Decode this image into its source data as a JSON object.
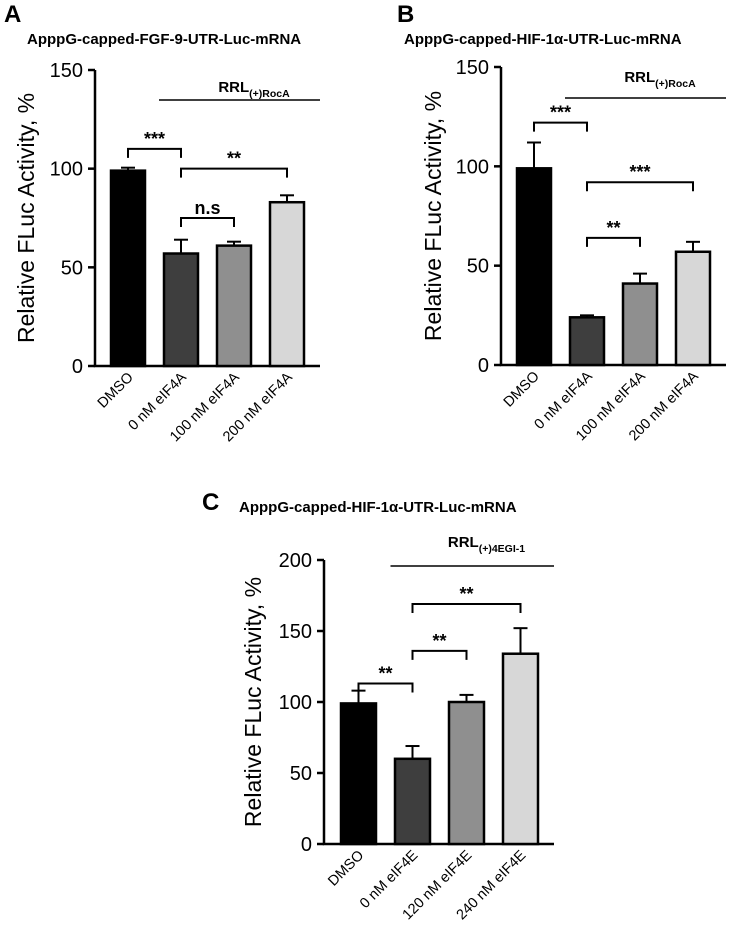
{
  "chart_data": [
    {
      "type": "bar",
      "panel_label": "A",
      "title": "ApppG-capped-FGF-9-UTR-Luc-mRNA",
      "xlabel": "",
      "ylabel": "Relative FLuc Activity, %",
      "ylim": [
        0,
        150
      ],
      "yticks": [
        0,
        50,
        100,
        150
      ],
      "categories": [
        "DMSO",
        "0 nM eIF4A",
        "100 nM eIF4A",
        "200 nM eIF4A"
      ],
      "values": [
        99,
        57,
        61,
        83
      ],
      "errors": [
        1.5,
        7,
        2,
        3.5
      ],
      "colors": [
        "#000000",
        "#3e3e3e",
        "#8f8f8f",
        "#d7d7d7"
      ],
      "condition": {
        "text": "RRL",
        "subscript": "(+)RocA",
        "from": 1,
        "to": 3
      },
      "significance": [
        {
          "from": 0,
          "to": 1,
          "label": "***",
          "y": 110
        },
        {
          "from": 1,
          "to": 3,
          "label": "**",
          "y": 100
        },
        {
          "from": 1,
          "to": 2,
          "label": "n.s",
          "y": 75
        }
      ],
      "grid": false,
      "legend": "none"
    },
    {
      "type": "bar",
      "panel_label": "B",
      "title": "ApppG-capped-HIF-1α-UTR-Luc-mRNA",
      "xlabel": "",
      "ylabel": "Relative FLuc Activity, %",
      "ylim": [
        0,
        150
      ],
      "yticks": [
        0,
        50,
        100,
        150
      ],
      "categories": [
        "DMSO",
        "0 nM eIF4A",
        "100 nM eIF4A",
        "200 nM eIF4A"
      ],
      "values": [
        99,
        24,
        41,
        57
      ],
      "errors": [
        13,
        1,
        5,
        5
      ],
      "colors": [
        "#000000",
        "#3e3e3e",
        "#8f8f8f",
        "#d7d7d7"
      ],
      "condition": {
        "text": "RRL",
        "subscript": "(+)RocA",
        "from": 1,
        "to": 3
      },
      "significance": [
        {
          "from": 0,
          "to": 1,
          "label": "***",
          "y": 122
        },
        {
          "from": 1,
          "to": 3,
          "label": "***",
          "y": 92
        },
        {
          "from": 1,
          "to": 2,
          "label": "**",
          "y": 64
        }
      ],
      "grid": false,
      "legend": "none"
    },
    {
      "type": "bar",
      "panel_label": "C",
      "title": "ApppG-capped-HIF-1α-UTR-Luc-mRNA",
      "xlabel": "",
      "ylabel": "Relative FLuc Activity, %",
      "ylim": [
        0,
        200
      ],
      "yticks": [
        0,
        50,
        100,
        150,
        200
      ],
      "categories": [
        "DMSO",
        "0 nM eIF4E",
        "120 nM eIF4E",
        "240 nM eIF4E"
      ],
      "values": [
        99,
        60,
        100,
        134
      ],
      "errors": [
        9,
        9,
        5,
        18
      ],
      "colors": [
        "#000000",
        "#3e3e3e",
        "#8f8f8f",
        "#d7d7d7"
      ],
      "condition": {
        "text": "RRL",
        "subscript": "(+)4EGI-1",
        "from": 1,
        "to": 3
      },
      "significance": [
        {
          "from": 0,
          "to": 1,
          "label": "**",
          "y": 113
        },
        {
          "from": 1,
          "to": 2,
          "label": "**",
          "y": 136
        },
        {
          "from": 1,
          "to": 3,
          "label": "**",
          "y": 169
        }
      ],
      "grid": false,
      "legend": "none"
    }
  ]
}
